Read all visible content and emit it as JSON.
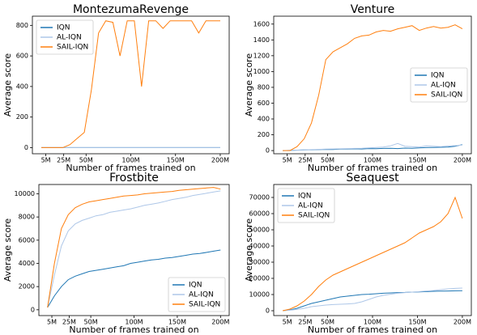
{
  "chart_data": [
    {
      "type": "line",
      "title": "MontezumaRevenge",
      "xlabel": "Number of frames trained on",
      "ylabel": "Average score",
      "x": [
        0,
        8,
        16,
        24,
        32,
        40,
        48,
        56,
        64,
        72,
        80,
        88,
        96,
        104,
        112,
        120,
        128,
        136,
        144,
        152,
        160,
        168,
        176,
        184,
        192,
        200
      ],
      "xlim": [
        -10,
        210
      ],
      "xticks": [
        {
          "value": 5,
          "label": "5M"
        },
        {
          "value": 25,
          "label": "25M"
        },
        {
          "value": 50,
          "label": "50M"
        },
        {
          "value": 100,
          "label": "100M"
        },
        {
          "value": 150,
          "label": "150M"
        },
        {
          "value": 200,
          "label": "200M"
        }
      ],
      "ylim": [
        -40,
        860
      ],
      "yticks": [
        0,
        200,
        400,
        600,
        800
      ],
      "legend": "upper left",
      "series": [
        {
          "name": "IQN",
          "color": "#1f77b4",
          "values": [
            0,
            0,
            0,
            0,
            0,
            0,
            0,
            0,
            0,
            0,
            0,
            0,
            0,
            0,
            0,
            0,
            0,
            0,
            0,
            0,
            0,
            0,
            0,
            0,
            0,
            0
          ]
        },
        {
          "name": "AL-IQN",
          "color": "#aec7e8",
          "values": [
            0,
            0,
            0,
            0,
            0,
            0,
            0,
            0,
            0,
            0,
            0,
            0,
            0,
            0,
            0,
            0,
            0,
            0,
            0,
            0,
            0,
            0,
            0,
            0,
            0,
            0
          ]
        },
        {
          "name": "SAIL-IQN",
          "color": "#ff7f0e",
          "values": [
            0,
            0,
            0,
            0,
            20,
            60,
            100,
            380,
            750,
            830,
            820,
            600,
            830,
            830,
            400,
            830,
            830,
            780,
            830,
            830,
            830,
            830,
            750,
            830,
            830,
            830
          ]
        }
      ]
    },
    {
      "type": "line",
      "title": "Venture",
      "xlabel": "Number of frames trained on",
      "ylabel": "Average score",
      "x": [
        0,
        8,
        16,
        24,
        32,
        40,
        48,
        56,
        64,
        72,
        80,
        88,
        96,
        104,
        112,
        120,
        128,
        136,
        144,
        152,
        160,
        168,
        176,
        184,
        192,
        200
      ],
      "xlim": [
        -10,
        210
      ],
      "xticks": [
        {
          "value": 5,
          "label": "5M"
        },
        {
          "value": 25,
          "label": "25M"
        },
        {
          "value": 50,
          "label": "50M"
        },
        {
          "value": 100,
          "label": "100M"
        },
        {
          "value": 150,
          "label": "150M"
        },
        {
          "value": 200,
          "label": "200M"
        }
      ],
      "ylim": [
        -40,
        1700
      ],
      "yticks": [
        0,
        200,
        400,
        600,
        800,
        1000,
        1200,
        1400,
        1600
      ],
      "legend": "center right",
      "series": [
        {
          "name": "IQN",
          "color": "#1f77b4",
          "values": [
            0,
            2,
            5,
            8,
            10,
            12,
            15,
            14,
            18,
            20,
            22,
            20,
            25,
            24,
            28,
            30,
            26,
            32,
            30,
            35,
            38,
            40,
            42,
            45,
            55,
            75
          ]
        },
        {
          "name": "AL-IQN",
          "color": "#aec7e8",
          "values": [
            0,
            3,
            6,
            10,
            12,
            15,
            18,
            20,
            22,
            25,
            28,
            30,
            35,
            40,
            45,
            60,
            90,
            55,
            50,
            45,
            60,
            55,
            50,
            58,
            62,
            70
          ]
        },
        {
          "name": "SAIL-IQN",
          "color": "#ff7f0e",
          "values": [
            0,
            0,
            50,
            150,
            350,
            700,
            1150,
            1250,
            1300,
            1350,
            1420,
            1450,
            1460,
            1500,
            1520,
            1510,
            1540,
            1560,
            1580,
            1520,
            1550,
            1570,
            1550,
            1560,
            1590,
            1540
          ]
        }
      ]
    },
    {
      "type": "line",
      "title": "Frostbite",
      "xlabel": "Number of frames trained on",
      "ylabel": "Average score",
      "x": [
        0,
        8,
        16,
        24,
        32,
        40,
        48,
        56,
        64,
        72,
        80,
        88,
        96,
        104,
        112,
        120,
        128,
        136,
        144,
        152,
        160,
        168,
        176,
        184,
        192,
        200
      ],
      "xlim": [
        -10,
        210
      ],
      "xticks": [
        {
          "value": 5,
          "label": "5M"
        },
        {
          "value": 25,
          "label": "25M"
        },
        {
          "value": 50,
          "label": "50M"
        },
        {
          "value": 100,
          "label": "100M"
        },
        {
          "value": 150,
          "label": "150M"
        },
        {
          "value": 200,
          "label": "200M"
        }
      ],
      "ylim": [
        -500,
        10800
      ],
      "yticks": [
        0,
        2000,
        4000,
        6000,
        8000,
        10000
      ],
      "legend": "lower right",
      "series": [
        {
          "name": "IQN",
          "color": "#1f77b4",
          "values": [
            200,
            1200,
            2000,
            2600,
            2900,
            3100,
            3300,
            3400,
            3500,
            3600,
            3700,
            3800,
            4000,
            4100,
            4200,
            4300,
            4350,
            4450,
            4500,
            4600,
            4700,
            4800,
            4850,
            4950,
            5050,
            5150
          ]
        },
        {
          "name": "AL-IQN",
          "color": "#aec7e8",
          "values": [
            200,
            3000,
            5500,
            6800,
            7400,
            7700,
            7900,
            8100,
            8200,
            8400,
            8500,
            8600,
            8700,
            8850,
            9000,
            9100,
            9200,
            9350,
            9500,
            9600,
            9700,
            9850,
            9950,
            10050,
            10150,
            10250
          ]
        },
        {
          "name": "SAIL-IQN",
          "color": "#ff7f0e",
          "values": [
            200,
            4000,
            7000,
            8200,
            8800,
            9100,
            9300,
            9400,
            9500,
            9600,
            9700,
            9800,
            9850,
            9900,
            10000,
            10050,
            10100,
            10150,
            10200,
            10300,
            10350,
            10400,
            10450,
            10500,
            10550,
            10400
          ]
        }
      ]
    },
    {
      "type": "line",
      "title": "Seaquest",
      "xlabel": "Number of frames trained on",
      "ylabel": "Average score",
      "x": [
        0,
        8,
        16,
        24,
        32,
        40,
        48,
        56,
        64,
        72,
        80,
        88,
        96,
        104,
        112,
        120,
        128,
        136,
        144,
        152,
        160,
        168,
        176,
        184,
        192,
        200
      ],
      "xlim": [
        -10,
        210
      ],
      "xticks": [
        {
          "value": 5,
          "label": "5M"
        },
        {
          "value": 25,
          "label": "25M"
        },
        {
          "value": 50,
          "label": "50M"
        },
        {
          "value": 100,
          "label": "100M"
        },
        {
          "value": 150,
          "label": "150M"
        },
        {
          "value": 200,
          "label": "200M"
        }
      ],
      "ylim": [
        -3000,
        78000
      ],
      "yticks": [
        0,
        10000,
        20000,
        30000,
        40000,
        50000,
        60000,
        70000
      ],
      "legend": "upper left",
      "series": [
        {
          "name": "IQN",
          "color": "#1f77b4",
          "values": [
            0,
            500,
            1500,
            3000,
            4500,
            5500,
            6500,
            7500,
            8500,
            9000,
            9500,
            10000,
            10200,
            10500,
            10800,
            11000,
            11200,
            11300,
            11500,
            11600,
            11800,
            12000,
            12100,
            12200,
            12300,
            12400
          ]
        },
        {
          "name": "AL-IQN",
          "color": "#aec7e8",
          "values": [
            0,
            300,
            800,
            1500,
            2500,
            3000,
            3500,
            3800,
            4000,
            4200,
            4500,
            5500,
            7000,
            8500,
            9500,
            10200,
            10800,
            11200,
            11500,
            11800,
            12200,
            12500,
            13000,
            13500,
            13800,
            14000
          ]
        },
        {
          "name": "SAIL-IQN",
          "color": "#ff7f0e",
          "values": [
            0,
            1000,
            3000,
            6000,
            10000,
            15000,
            19000,
            22000,
            24000,
            26000,
            28000,
            30000,
            32000,
            34000,
            36000,
            38000,
            40000,
            42000,
            45000,
            48000,
            50000,
            52000,
            55000,
            60000,
            70000,
            57000
          ]
        }
      ]
    }
  ]
}
